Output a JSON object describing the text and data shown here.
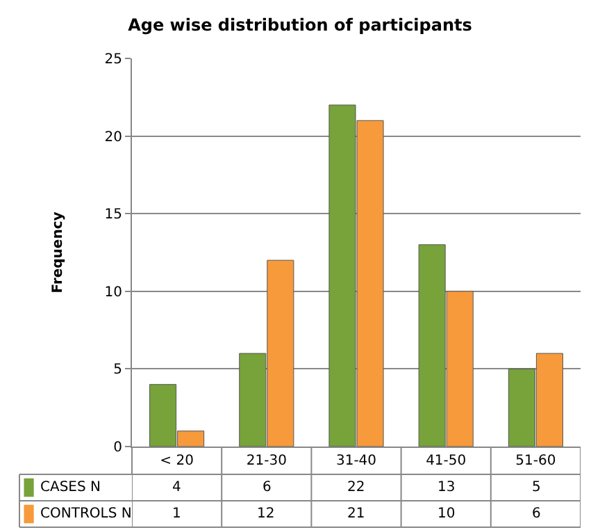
{
  "chart_data": {
    "type": "bar",
    "title": "Age wise distribution of participants",
    "ylabel": "Frequency",
    "categories": [
      "< 20",
      "21-30",
      "31-40",
      "41-50",
      "51-60"
    ],
    "series": [
      {
        "name": "CASES N",
        "color": "#77a33a",
        "values": [
          4,
          6,
          22,
          13,
          5
        ]
      },
      {
        "name": "CONTROLS N",
        "color": "#f79a3c",
        "values": [
          1,
          12,
          21,
          10,
          6
        ]
      }
    ],
    "ylim": [
      0,
      25
    ],
    "yticks": [
      0,
      5,
      10,
      15,
      20,
      25
    ],
    "grid": "y",
    "legend": "bottom",
    "data_labels": true
  }
}
